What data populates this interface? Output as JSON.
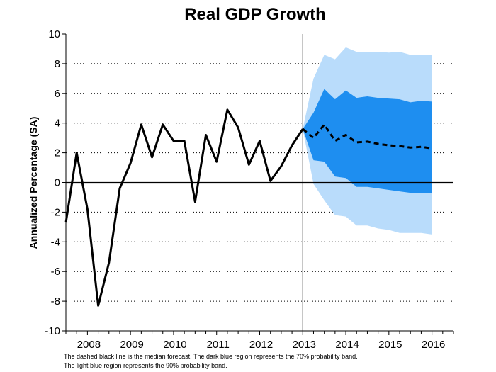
{
  "chart_data": {
    "type": "line",
    "title": "Real GDP Growth",
    "ylabel": "Annualized Percentage (SA)",
    "xlabel": "",
    "ylim": [
      -10,
      10
    ],
    "xlim": [
      2007.5,
      2016.5
    ],
    "yticks": [
      -10,
      -8,
      -6,
      -4,
      -2,
      0,
      2,
      4,
      6,
      8,
      10
    ],
    "xticks": [
      {
        "label": "2008",
        "x": 2008.0
      },
      {
        "label": "2009",
        "x": 2009.0
      },
      {
        "label": "2010",
        "x": 2010.0
      },
      {
        "label": "2011",
        "x": 2011.0
      },
      {
        "label": "2012",
        "x": 2012.0
      },
      {
        "label": "2013",
        "x": 2013.0
      },
      {
        "label": "2014",
        "x": 2014.0
      },
      {
        "label": "2015",
        "x": 2015.0
      },
      {
        "label": "2016",
        "x": 2016.0
      }
    ],
    "grid": "dotted horizontal",
    "forecast_start": 2013.0,
    "series": [
      {
        "style": "solid",
        "color": "#000000",
        "points": [
          [
            2007.5,
            -2.7
          ],
          [
            2007.75,
            2.0
          ],
          [
            2008.0,
            -1.8
          ],
          [
            2008.25,
            -8.3
          ],
          [
            2008.5,
            -5.4
          ],
          [
            2008.75,
            -0.4
          ],
          [
            2009.0,
            1.3
          ],
          [
            2009.25,
            3.9
          ],
          [
            2009.5,
            1.7
          ],
          [
            2009.75,
            3.9
          ],
          [
            2010.0,
            2.8
          ],
          [
            2010.25,
            2.8
          ],
          [
            2010.5,
            -1.3
          ],
          [
            2010.75,
            3.2
          ],
          [
            2011.0,
            1.4
          ],
          [
            2011.25,
            4.9
          ],
          [
            2011.5,
            3.7
          ],
          [
            2011.75,
            1.2
          ],
          [
            2012.0,
            2.8
          ],
          [
            2012.25,
            0.1
          ],
          [
            2012.5,
            1.1
          ],
          [
            2012.75,
            2.5
          ],
          [
            2013.0,
            3.6
          ]
        ]
      },
      {
        "style": "dashed",
        "color": "#000000",
        "points": [
          [
            2013.0,
            3.6
          ],
          [
            2013.25,
            3.0
          ],
          [
            2013.5,
            3.9
          ],
          [
            2013.75,
            2.8
          ],
          [
            2014.0,
            3.2
          ],
          [
            2014.25,
            2.7
          ],
          [
            2014.5,
            2.75
          ],
          [
            2014.75,
            2.6
          ],
          [
            2015.0,
            2.5
          ],
          [
            2015.25,
            2.45
          ],
          [
            2015.5,
            2.35
          ],
          [
            2015.75,
            2.4
          ],
          [
            2016.0,
            2.3
          ]
        ]
      }
    ],
    "bands": [
      {
        "probability": "90%",
        "color": "#b9dcfb",
        "x": [
          2013.0,
          2013.25,
          2013.5,
          2013.75,
          2014.0,
          2014.25,
          2014.5,
          2014.75,
          2015.0,
          2015.25,
          2015.5,
          2015.75,
          2016.0
        ],
        "upper": [
          3.6,
          7.0,
          8.6,
          8.3,
          9.1,
          8.8,
          8.8,
          8.8,
          8.75,
          8.8,
          8.6,
          8.6,
          8.6
        ],
        "lower": [
          3.6,
          -0.1,
          -1.2,
          -2.2,
          -2.3,
          -2.9,
          -2.9,
          -3.1,
          -3.2,
          -3.4,
          -3.4,
          -3.4,
          -3.5
        ]
      },
      {
        "probability": "70%",
        "color": "#1e8ef0",
        "x": [
          2013.0,
          2013.25,
          2013.5,
          2013.75,
          2014.0,
          2014.25,
          2014.5,
          2014.75,
          2015.0,
          2015.25,
          2015.5,
          2015.75,
          2016.0
        ],
        "upper": [
          3.6,
          4.7,
          6.3,
          5.6,
          6.2,
          5.7,
          5.8,
          5.7,
          5.65,
          5.6,
          5.4,
          5.5,
          5.45
        ],
        "lower": [
          3.6,
          1.5,
          1.4,
          0.4,
          0.3,
          -0.3,
          -0.3,
          -0.4,
          -0.5,
          -0.6,
          -0.7,
          -0.7,
          -0.7
        ]
      }
    ]
  },
  "notes": {
    "line1": "The dashed black line is the median forecast. The dark blue region represents the 70% probability band.",
    "line2": "The light blue region represents the 90% probability band."
  }
}
